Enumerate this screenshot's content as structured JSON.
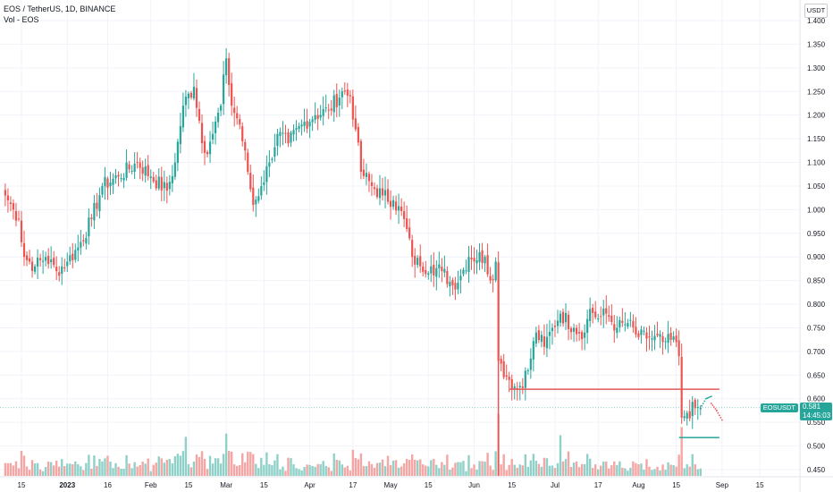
{
  "legend": {
    "symbol_line": "EOS / TetherUS, 1D, BINANCE",
    "volume_line": "Vol - EOS"
  },
  "axis": {
    "currency": "USDT",
    "y_ticks": [
      "1.400",
      "1.350",
      "1.300",
      "1.250",
      "1.200",
      "1.150",
      "1.100",
      "1.050",
      "1.000",
      "0.950",
      "0.900",
      "0.850",
      "0.800",
      "0.750",
      "0.700",
      "0.650",
      "0.600",
      "0.550",
      "0.500",
      "0.450"
    ],
    "x_ticks": [
      "15",
      "2023",
      "16",
      "Feb",
      "15",
      "Mar",
      "15",
      "Apr",
      "17",
      "May",
      "15",
      "Jun",
      "15",
      "Jul",
      "17",
      "Aug",
      "15",
      "Sep",
      "15"
    ]
  },
  "last_price": {
    "symbol": "EOSUSDT",
    "price": "0.581",
    "countdown": "14:45:03"
  },
  "colors": {
    "up": "#26a69a",
    "down": "#ef5350",
    "hline_red": "#e05a5a",
    "hline_teal": "#26a69a",
    "grid": "#f0f3fa"
  },
  "chart_data": {
    "type": "candlestick",
    "ylim": [
      0.44,
      1.41
    ],
    "close_keypoints": [
      [
        "2022-12-09",
        1.03
      ],
      [
        "2022-12-12",
        1.0
      ],
      [
        "2022-12-14",
        0.98
      ],
      [
        "2022-12-16",
        0.9
      ],
      [
        "2022-12-20",
        0.88
      ],
      [
        "2022-12-24",
        0.9
      ],
      [
        "2022-12-28",
        0.87
      ],
      [
        "2023-01-01",
        0.89
      ],
      [
        "2023-01-05",
        0.92
      ],
      [
        "2023-01-10",
        0.98
      ],
      [
        "2023-01-14",
        1.05
      ],
      [
        "2023-01-20",
        1.07
      ],
      [
        "2023-01-27",
        1.1
      ],
      [
        "2023-02-01",
        1.07
      ],
      [
        "2023-02-07",
        1.04
      ],
      [
        "2023-02-10",
        1.1
      ],
      [
        "2023-02-13",
        1.22
      ],
      [
        "2023-02-17",
        1.26
      ],
      [
        "2023-02-21",
        1.12
      ],
      [
        "2023-02-24",
        1.16
      ],
      [
        "2023-02-27",
        1.22
      ],
      [
        "2023-03-01",
        1.32
      ],
      [
        "2023-03-03",
        1.22
      ],
      [
        "2023-03-06",
        1.18
      ],
      [
        "2023-03-09",
        1.08
      ],
      [
        "2023-03-11",
        1.01
      ],
      [
        "2023-03-14",
        1.05
      ],
      [
        "2023-03-17",
        1.1
      ],
      [
        "2023-03-20",
        1.16
      ],
      [
        "2023-03-24",
        1.14
      ],
      [
        "2023-03-29",
        1.18
      ],
      [
        "2023-04-03",
        1.2
      ],
      [
        "2023-04-08",
        1.21
      ],
      [
        "2023-04-13",
        1.25
      ],
      [
        "2023-04-16",
        1.24
      ],
      [
        "2023-04-18",
        1.17
      ],
      [
        "2023-04-20",
        1.08
      ],
      [
        "2023-04-24",
        1.05
      ],
      [
        "2023-04-28",
        1.03
      ],
      [
        "2023-05-02",
        1.02
      ],
      [
        "2023-05-06",
        0.98
      ],
      [
        "2023-05-09",
        0.9
      ],
      [
        "2023-05-12",
        0.88
      ],
      [
        "2023-05-16",
        0.88
      ],
      [
        "2023-05-20",
        0.87
      ],
      [
        "2023-05-24",
        0.84
      ],
      [
        "2023-05-27",
        0.86
      ],
      [
        "2023-05-30",
        0.9
      ],
      [
        "2023-06-05",
        0.9
      ],
      [
        "2023-06-07",
        0.85
      ],
      [
        "2023-06-09",
        0.89
      ],
      [
        "2023-06-10",
        0.68
      ],
      [
        "2023-06-14",
        0.64
      ],
      [
        "2023-06-17",
        0.62
      ],
      [
        "2023-06-21",
        0.66
      ],
      [
        "2023-06-24",
        0.74
      ],
      [
        "2023-06-27",
        0.71
      ],
      [
        "2023-06-30",
        0.75
      ],
      [
        "2023-07-03",
        0.78
      ],
      [
        "2023-07-08",
        0.75
      ],
      [
        "2023-07-12",
        0.74
      ],
      [
        "2023-07-14",
        0.79
      ],
      [
        "2023-07-17",
        0.77
      ],
      [
        "2023-07-20",
        0.78
      ],
      [
        "2023-07-24",
        0.75
      ],
      [
        "2023-07-28",
        0.76
      ],
      [
        "2023-08-01",
        0.73
      ],
      [
        "2023-08-05",
        0.73
      ],
      [
        "2023-08-10",
        0.72
      ],
      [
        "2023-08-15",
        0.72
      ],
      [
        "2023-08-16",
        0.69
      ],
      [
        "2023-08-17",
        0.56
      ],
      [
        "2023-08-19",
        0.57
      ],
      [
        "2023-08-22",
        0.58
      ],
      [
        "2023-08-24",
        0.581
      ]
    ],
    "horizontal_lines": [
      {
        "color": "red",
        "y": 0.62,
        "from": "2023-06-14",
        "to": "2023-08-31"
      },
      {
        "color": "teal",
        "y": 0.518,
        "from": "2023-08-16",
        "to": "2023-08-31"
      }
    ],
    "forecast_points_up": [
      [
        "2023-08-24",
        0.58
      ],
      [
        "2023-08-26",
        0.6
      ],
      [
        "2023-08-28",
        0.605
      ]
    ],
    "forecast_points_down": [
      [
        "2023-08-28",
        0.59
      ],
      [
        "2023-08-30",
        0.575
      ],
      [
        "2023-09-01",
        0.555
      ]
    ],
    "volume_spikes": [
      [
        "2023-02-14",
        2.4
      ],
      [
        "2023-03-01",
        2.6
      ],
      [
        "2023-06-10",
        3.8
      ],
      [
        "2023-07-03",
        2.5
      ],
      [
        "2023-08-17",
        3.0
      ]
    ]
  }
}
